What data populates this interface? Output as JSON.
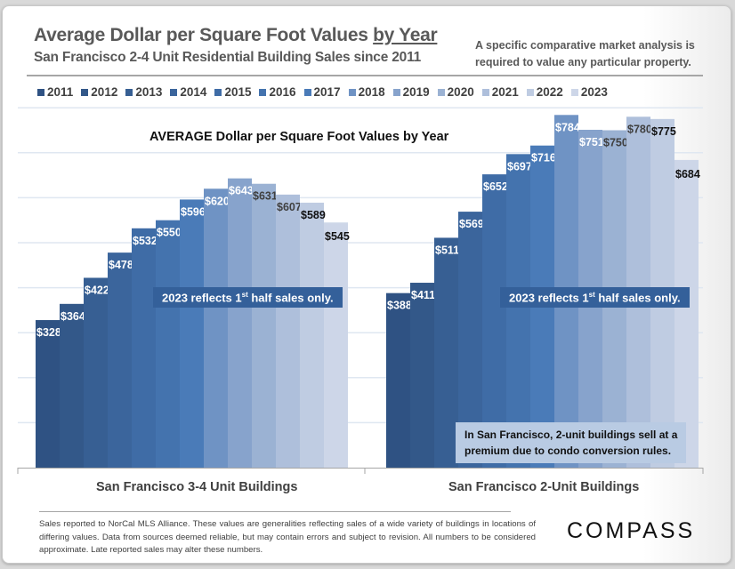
{
  "header": {
    "title_main": "Average Dollar per Square Foot Values ",
    "title_underlined": "by Year",
    "subtitle": "San Francisco 2-4 Unit Residential Building Sales since 2011",
    "disclaimer_line1": "A specific comparative market analysis is",
    "disclaimer_line2": "required to value any particular property."
  },
  "annotations": {
    "half_year_note_prefix": "2023 reflects 1",
    "half_year_note_sup": "st",
    "half_year_note_suffix": " half sales only.",
    "condo_note_line1": "In San Francisco, 2-unit buildings sell at a",
    "condo_note_line2": "premium due to condo conversion rules."
  },
  "footer": {
    "footnote": "Sales reported to NorCal MLS Alliance. These values are generalities reflecting sales of a wide variety of buildings in locations of differing values. Data from sources deemed reliable, but may contain errors and subject to revision. All numbers to be considered approximate. Late reported sales may alter these numbers.",
    "brand": "COMPASS"
  },
  "chart_data": {
    "type": "bar",
    "title": "AVERAGE Dollar per Square Foot Values by Year",
    "xlabel": "",
    "ylabel": "",
    "ylim": [
      0,
      800
    ],
    "grid": true,
    "gridline_step": 100,
    "legend_position": "top",
    "categories": [
      "San Francisco 3-4 Unit Buildings",
      "San Francisco 2-Unit Buildings"
    ],
    "series": [
      {
        "name": "2011",
        "color": "#2f5283",
        "values": [
          328,
          388
        ]
      },
      {
        "name": "2012",
        "color": "#335889",
        "values": [
          364,
          411
        ]
      },
      {
        "name": "2013",
        "color": "#375f93",
        "values": [
          422,
          511
        ]
      },
      {
        "name": "2014",
        "color": "#3b659c",
        "values": [
          478,
          569
        ]
      },
      {
        "name": "2015",
        "color": "#3f6ca6",
        "values": [
          532,
          652
        ]
      },
      {
        "name": "2016",
        "color": "#4473ae",
        "values": [
          550,
          697
        ]
      },
      {
        "name": "2017",
        "color": "#4a7bb8",
        "values": [
          596,
          716
        ]
      },
      {
        "name": "2018",
        "color": "#6f93c4",
        "values": [
          620,
          784
        ]
      },
      {
        "name": "2019",
        "color": "#87a3cc",
        "values": [
          643,
          751
        ]
      },
      {
        "name": "2020",
        "color": "#9bb2d3",
        "values": [
          631,
          750
        ]
      },
      {
        "name": "2021",
        "color": "#aebfdb",
        "values": [
          607,
          780
        ]
      },
      {
        "name": "2022",
        "color": "#bfcce2",
        "values": [
          589,
          775
        ]
      },
      {
        "name": "2023",
        "color": "#cdd6e8",
        "values": [
          545,
          684
        ]
      }
    ],
    "label_colors": {
      "dark_bars_label": "#ffffff",
      "light_bars_label": "#333333",
      "last_bars_label": "#111111"
    }
  }
}
